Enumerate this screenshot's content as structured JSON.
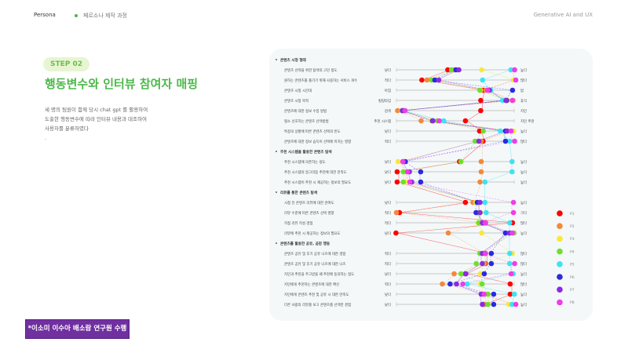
{
  "header": {
    "left": "Persona",
    "subtitle": "페르소나 제작 과정",
    "right": "Generative AI and UX"
  },
  "step": {
    "badge": "STEP 02",
    "title": "행동변수와 인터뷰 참여자 매핑",
    "description": [
      "세 명의 팀원이 함께 당시 chat gpt 를 활용하여",
      "도출한 행동변수에 따라 인터뷰 내용과 대조하여",
      "사용자를 분류하였다",
      "."
    ]
  },
  "credit": "*이소미 이수아 배소람 연구원 수행",
  "chart_data": {
    "type": "scatter",
    "participants": [
      {
        "name": "P1",
        "color": "#ff0000"
      },
      {
        "name": "P2",
        "color": "#f4883a"
      },
      {
        "name": "P3",
        "color": "#f7e83a"
      },
      {
        "name": "P4",
        "color": "#6ee02a"
      },
      {
        "name": "P5",
        "color": "#3de3f2"
      },
      {
        "name": "P6",
        "color": "#2a2ae0"
      },
      {
        "name": "P7",
        "color": "#8a2be2"
      },
      {
        "name": "P8",
        "color": "#f03ce8"
      }
    ],
    "legend_position": "right",
    "rows": [
      {
        "section": "콘텐츠 시청 형태"
      },
      {
        "label": "콘텐츠 선택을 위한 탐색의 고민 정도",
        "left": "낮다",
        "right": "높다",
        "values": [
          0.45,
          0.5,
          0.73,
          0.47,
          0.97,
          0.5,
          0.52,
          0.99
        ]
      },
      {
        "label": "원하는 콘텐츠를 즐기기 위해 사용하는 서비스 개수",
        "left": "적다",
        "right": "많다",
        "values": [
          0.23,
          0.27,
          1.0,
          0.3,
          0.73,
          0.32,
          0.35,
          1.0
        ]
      },
      {
        "label": "콘텐츠 시청 시간대",
        "left": "아침",
        "right": "밤",
        "values": [
          0.75,
          0.77,
          0.72,
          0.71,
          0.8,
          0.98,
          0.78,
          0.76
        ]
      },
      {
        "label": "콘텐츠 시청 목적",
        "left": "킬링타임",
        "right": "휴식",
        "values": [
          0.73,
          1.0,
          0.95,
          0.93,
          0.9,
          0.93,
          0.92,
          0.97
        ]
      },
      {
        "label": "콘텐츠에 대한 정보 수집 방법",
        "left": "검색",
        "right": "지인",
        "values": [
          0.73,
          0.02,
          0.05,
          0.05,
          0.06,
          0.05,
          0.04,
          0.06
        ]
      },
      {
        "label": "평소 선호하는 콘텐츠 선택방법",
        "left": "추천 시스템",
        "right": "지인 추천",
        "values": [
          0.6,
          0.22,
          0.3,
          0.35,
          0.4,
          0.3,
          0.3,
          0.35
        ]
      },
      {
        "label": "특정의 상황에 따른 콘텐츠 선택의 빈도",
        "left": "낮다",
        "right": "높다",
        "values": [
          0.72,
          0.95,
          1.0,
          0.74,
          0.88,
          0.92,
          0.93,
          0.96
        ]
      },
      {
        "label": "콘텐츠에 대한 정보 습득이 선택에 미치는 영향",
        "left": "적다",
        "right": "많다",
        "values": [
          0.75,
          0.73,
          0.7,
          0.67,
          0.96,
          0.92,
          0.69,
          0.99
        ]
      },
      {
        "section": "추천 시스템을 활용한 콘텐츠 탐색"
      },
      {
        "label": "추천 시스템에 의존하는 정도",
        "left": "낮다",
        "right": "높다",
        "values": [
          0.55,
          0.73,
          0.02,
          0.55,
          0.98,
          0.07,
          0.05,
          0.04
        ]
      },
      {
        "label": "추천 시스템의 알고리즘 추천에 대한 만족도",
        "left": "낮다",
        "right": "높다",
        "values": [
          0.02,
          0.73,
          0.08,
          0.06,
          0.98,
          0.2,
          0.1,
          0.08
        ]
      },
      {
        "label": "추천 시스템이 추천 시 제공하는 정보의 필요도",
        "left": "낮다",
        "right": "높다",
        "values": [
          0.02,
          0.72,
          0.08,
          0.06,
          0.75,
          0.2,
          0.12,
          0.1
        ]
      },
      {
        "section": "리뷰를 통한 콘텐츠 탐색"
      },
      {
        "label": "시청 전 콘텐츠 리뷰에 대한 관여도",
        "left": "낮다",
        "right": "높다",
        "values": [
          0.6,
          0.66,
          0.68,
          0.7,
          0.75,
          0.68,
          0.7,
          0.98
        ]
      },
      {
        "label": "리뷰 수준에 따른 콘텐츠 선택 영향",
        "left": "적다",
        "right": "크다",
        "values": [
          0.04,
          0.01,
          0.72,
          0.7,
          0.76,
          0.67,
          0.7,
          0.98
        ]
      },
      {
        "label": "직접 리뷰 작성 경험",
        "left": "적다",
        "right": "많다",
        "values": [
          1.0,
          0.74,
          0.7,
          0.7,
          0.96,
          0.75,
          0.72,
          0.74
        ]
      },
      {
        "label": "리뷰에 추천 시 제공하는 정보의 필요도",
        "left": "낮다",
        "right": "높다",
        "values": [
          0.01,
          0.45,
          0.73,
          1.0,
          0.96,
          0.92,
          0.95,
          0.97
        ]
      },
      {
        "section": "콘텐츠를 활용한 공유, 공감 행동"
      },
      {
        "label": "콘텐츠 공유 및 후기 공유 니즈에 대한 경험",
        "left": "적다",
        "right": "많다",
        "values": [
          0.77,
          0.75,
          0.99,
          0.71,
          0.96,
          0.8,
          0.72,
          0.74
        ]
      },
      {
        "label": "콘텐츠 공유 및 후기 공유 니즈에 대한 니즈",
        "left": "적다",
        "right": "많다",
        "values": [
          0.77,
          0.76,
          0.74,
          0.68,
          0.96,
          0.8,
          0.72,
          0.99
        ]
      },
      {
        "label": "지인과 추천을 주고받을 때 추천에 동의하는 정도",
        "left": "낮다",
        "right": "높다",
        "values": [
          0.6,
          0.5,
          0.72,
          0.55,
          0.99,
          0.74,
          0.58,
          0.96
        ]
      },
      {
        "label": "지인에게 추천하는 콘텐츠에 대한 확신",
        "left": "적다",
        "right": "많다",
        "values": [
          0.98,
          0.4,
          0.72,
          0.73,
          0.6,
          0.45,
          0.5,
          0.55
        ]
      },
      {
        "label": "지인에게 콘텐츠 추천 및 공유 시 대한 만족도",
        "left": "낮다",
        "right": "높다",
        "values": [
          0.98,
          0.76,
          0.74,
          0.78,
          1.0,
          0.82,
          0.71,
          0.73
        ]
      },
      {
        "label": "다른 사람의 리뷰를 보고 콘텐츠를 선택한 경험",
        "left": "낮다",
        "right": "높다",
        "values": [
          0.75,
          0.76,
          0.96,
          0.78,
          0.98,
          0.82,
          0.72,
          1.0
        ]
      }
    ]
  }
}
